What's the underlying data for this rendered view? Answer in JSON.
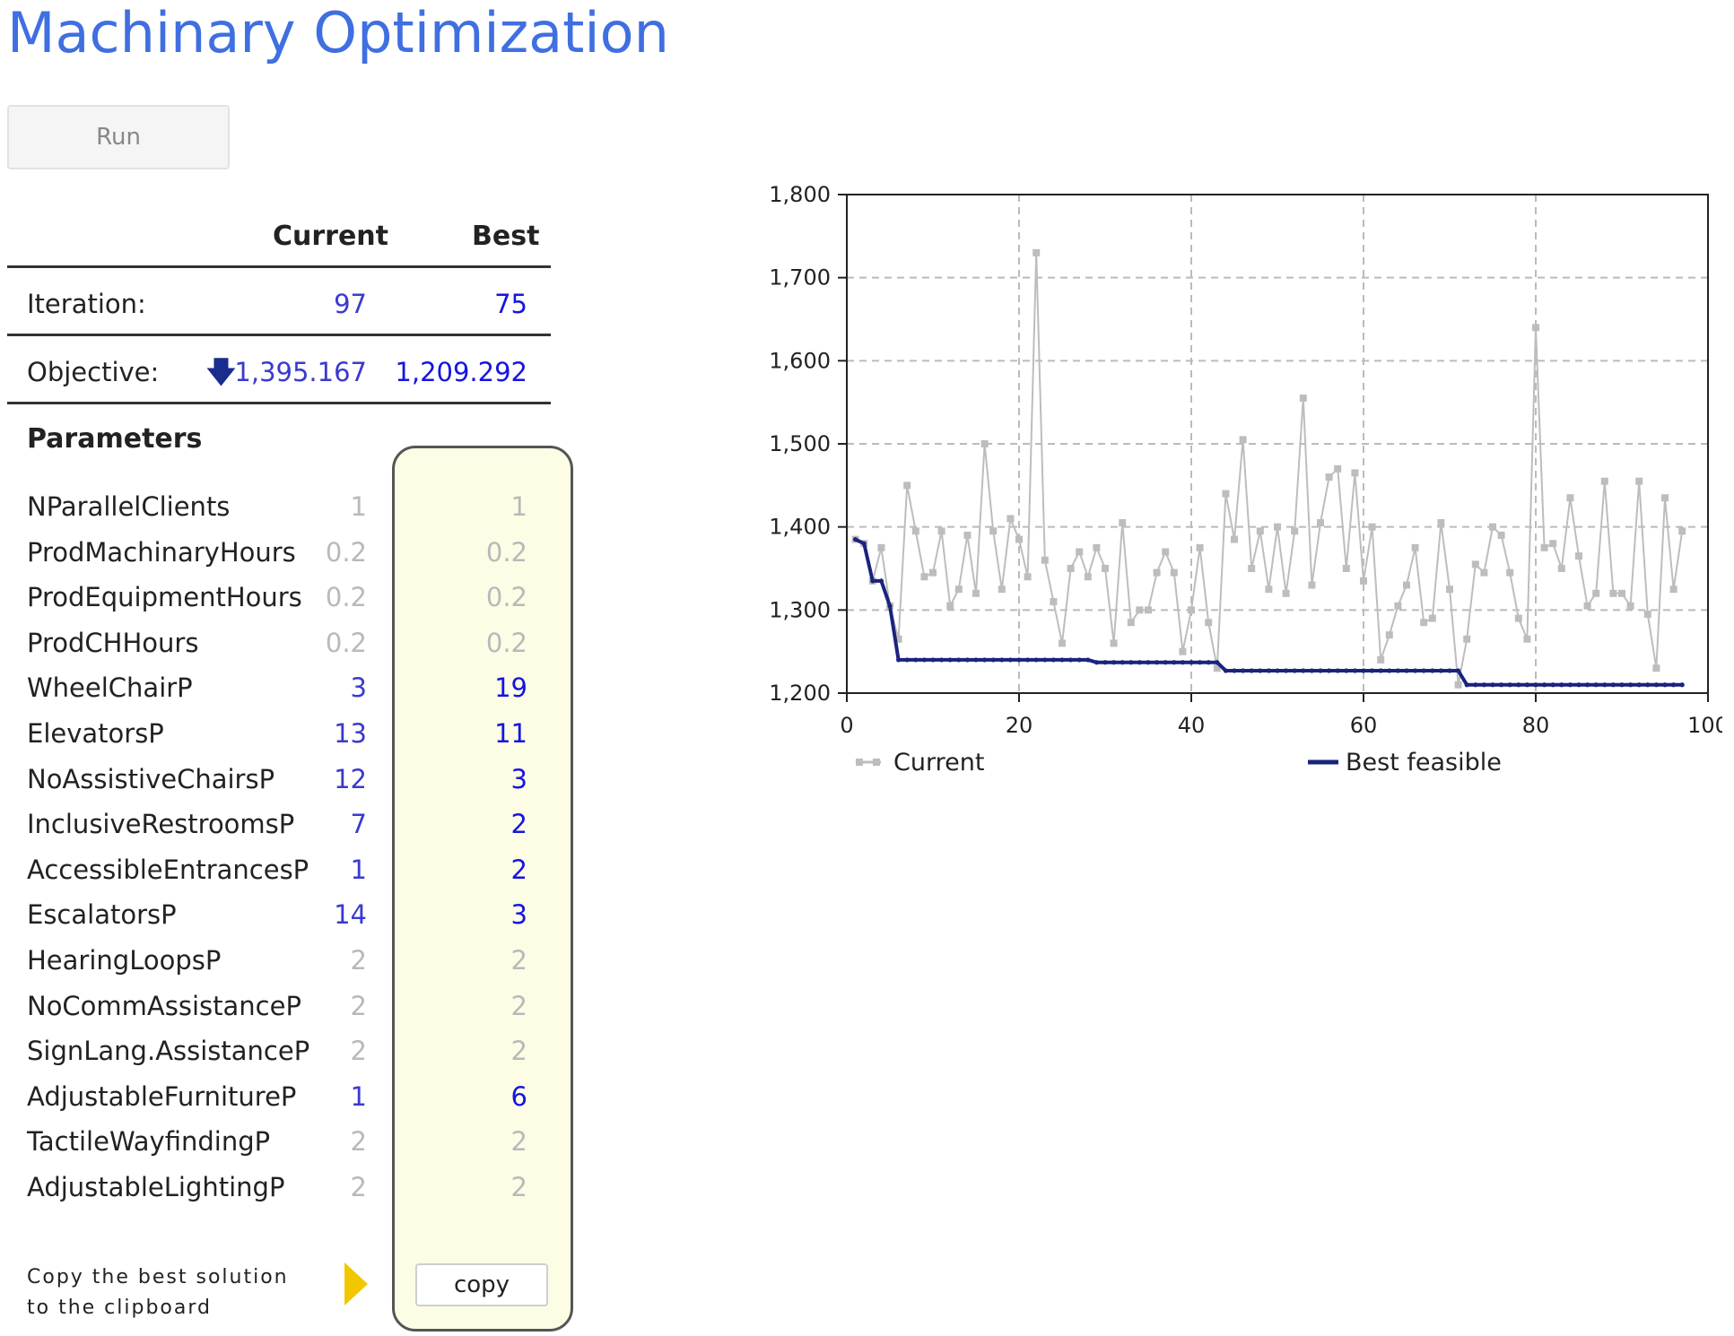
{
  "header": {
    "title": "Machinary Optimization"
  },
  "run_button": {
    "label": "Run"
  },
  "table": {
    "col_current": "Current",
    "col_best": "Best",
    "iteration": {
      "label": "Iteration:",
      "current": "97",
      "best": "75"
    },
    "objective": {
      "label": "Objective:",
      "current": "1,395.167",
      "best": "1,209.292"
    }
  },
  "parameters": {
    "title": "Parameters",
    "items": [
      {
        "name": "NParallelClients",
        "current": "1",
        "best": "1"
      },
      {
        "name": "ProdMachinaryHours",
        "current": "0.2",
        "best": "0.2"
      },
      {
        "name": "ProdEquipmentHours",
        "current": "0.2",
        "best": "0.2"
      },
      {
        "name": "ProdCHHours",
        "current": "0.2",
        "best": "0.2"
      },
      {
        "name": "WheelChairP",
        "current": "3",
        "best": "19"
      },
      {
        "name": "ElevatorsP",
        "current": "13",
        "best": "11"
      },
      {
        "name": "NoAssistiveChairsP",
        "current": "12",
        "best": "3"
      },
      {
        "name": "InclusiveRestroomsP",
        "current": "7",
        "best": "2"
      },
      {
        "name": "AccessibleEntrancesP",
        "current": "1",
        "best": "2"
      },
      {
        "name": "EscalatorsP",
        "current": "14",
        "best": "3"
      },
      {
        "name": "HearingLoopsP",
        "current": "2",
        "best": "2"
      },
      {
        "name": "NoCommAssistanceP",
        "current": "2",
        "best": "2"
      },
      {
        "name": "SignLang.AssistanceP",
        "current": "2",
        "best": "2"
      },
      {
        "name": "AdjustableFurnitureP",
        "current": "1",
        "best": "6"
      },
      {
        "name": "TactileWayfindingP",
        "current": "2",
        "best": "2"
      },
      {
        "name": "AdjustableLightingP",
        "current": "2",
        "best": "2"
      }
    ]
  },
  "copy": {
    "note_line1": "Copy the best solution",
    "note_line2": "to the clipboard",
    "button_label": "copy"
  },
  "colors": {
    "title": "#3f6fe0",
    "current_series": "#bdbdbd",
    "best_series": "#1a237e",
    "highlight_value": "#3a3ad0"
  },
  "chart_data": {
    "type": "line",
    "xlim": [
      0,
      100
    ],
    "ylim": [
      1200,
      1800
    ],
    "x_ticks": [
      "0",
      "20",
      "40",
      "60",
      "80",
      "100"
    ],
    "y_ticks": [
      "1,200",
      "1,300",
      "1,400",
      "1,500",
      "1,600",
      "1,700",
      "1,800"
    ],
    "grid": true,
    "legend": "bottom",
    "series": [
      {
        "name": "Current",
        "values": [
          1385,
          1380,
          1335,
          1375,
          1305,
          1265,
          1450,
          1395,
          1340,
          1345,
          1395,
          1305,
          1325,
          1390,
          1320,
          1500,
          1395,
          1325,
          1410,
          1385,
          1340,
          1730,
          1360,
          1310,
          1260,
          1350,
          1370,
          1340,
          1375,
          1350,
          1260,
          1405,
          1285,
          1300,
          1300,
          1345,
          1370,
          1345,
          1250,
          1300,
          1375,
          1285,
          1230,
          1440,
          1385,
          1505,
          1350,
          1395,
          1325,
          1400,
          1320,
          1395,
          1555,
          1330,
          1405,
          1460,
          1470,
          1350,
          1465,
          1335,
          1400,
          1240,
          1270,
          1305,
          1330,
          1375,
          1285,
          1290,
          1405,
          1325,
          1210,
          1265,
          1355,
          1345,
          1400,
          1390,
          1345,
          1290,
          1265,
          1640,
          1375,
          1380,
          1350,
          1435,
          1365,
          1305,
          1320,
          1455,
          1320,
          1320,
          1305,
          1455,
          1295,
          1230,
          1435,
          1325,
          1395
        ]
      },
      {
        "name": "Best feasible",
        "values": [
          1385,
          1380,
          1335,
          1335,
          1305,
          1240,
          1240,
          1240,
          1240,
          1240,
          1240,
          1240,
          1240,
          1240,
          1240,
          1240,
          1240,
          1240,
          1240,
          1240,
          1240,
          1240,
          1240,
          1240,
          1240,
          1240,
          1240,
          1240,
          1237,
          1237,
          1237,
          1237,
          1237,
          1237,
          1237,
          1237,
          1237,
          1237,
          1237,
          1237,
          1237,
          1237,
          1237,
          1227,
          1227,
          1227,
          1227,
          1227,
          1227,
          1227,
          1227,
          1227,
          1227,
          1227,
          1227,
          1227,
          1227,
          1227,
          1227,
          1227,
          1227,
          1227,
          1227,
          1227,
          1227,
          1227,
          1227,
          1227,
          1227,
          1227,
          1227,
          1210,
          1210,
          1210,
          1210,
          1210,
          1210,
          1210,
          1210,
          1210,
          1210,
          1210,
          1210,
          1210,
          1210,
          1210,
          1210,
          1210,
          1210,
          1210,
          1210,
          1210,
          1210,
          1210,
          1210,
          1210,
          1210
        ]
      }
    ]
  }
}
